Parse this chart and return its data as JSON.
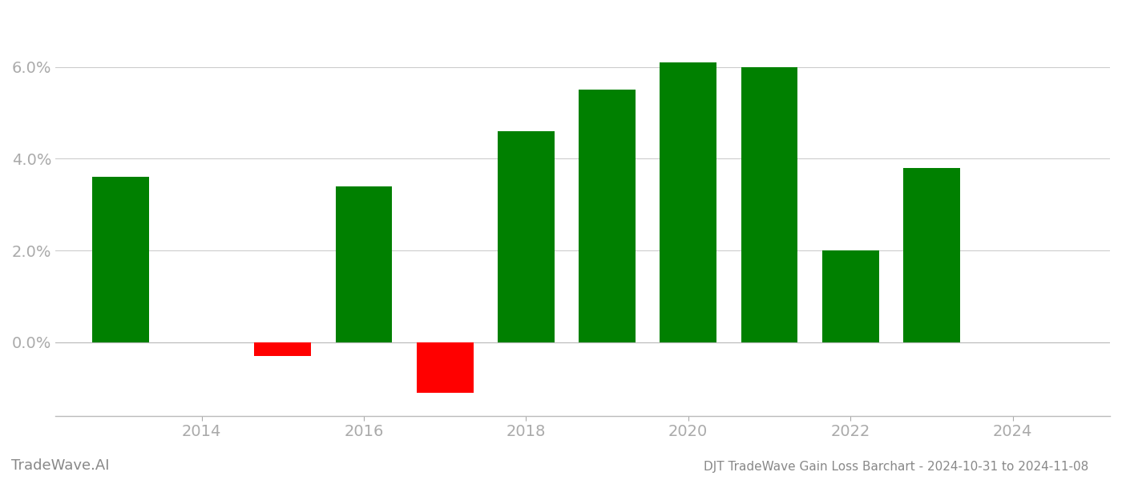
{
  "years": [
    2013,
    2015,
    2016,
    2017,
    2018,
    2019,
    2020,
    2021,
    2022,
    2023
  ],
  "values": [
    3.6,
    -0.3,
    3.4,
    -1.1,
    4.6,
    5.5,
    6.1,
    6.0,
    2.0,
    3.8
  ],
  "bar_colors_pos": "#008000",
  "bar_colors_neg": "#ff0000",
  "title": "DJT TradeWave Gain Loss Barchart - 2024-10-31 to 2024-11-08",
  "watermark": "TradeWave.AI",
  "background_color": "#ffffff",
  "ytick_values": [
    0.0,
    2.0,
    4.0,
    6.0
  ],
  "ylim": [
    -1.6,
    7.2
  ],
  "xlim": [
    2012.2,
    2025.2
  ],
  "xtick_positions": [
    2014,
    2016,
    2018,
    2020,
    2022,
    2024
  ],
  "grid_color": "#cccccc",
  "axis_label_color": "#aaaaaa",
  "bar_width": 0.7,
  "title_fontsize": 11,
  "tick_fontsize": 14,
  "watermark_fontsize": 13
}
